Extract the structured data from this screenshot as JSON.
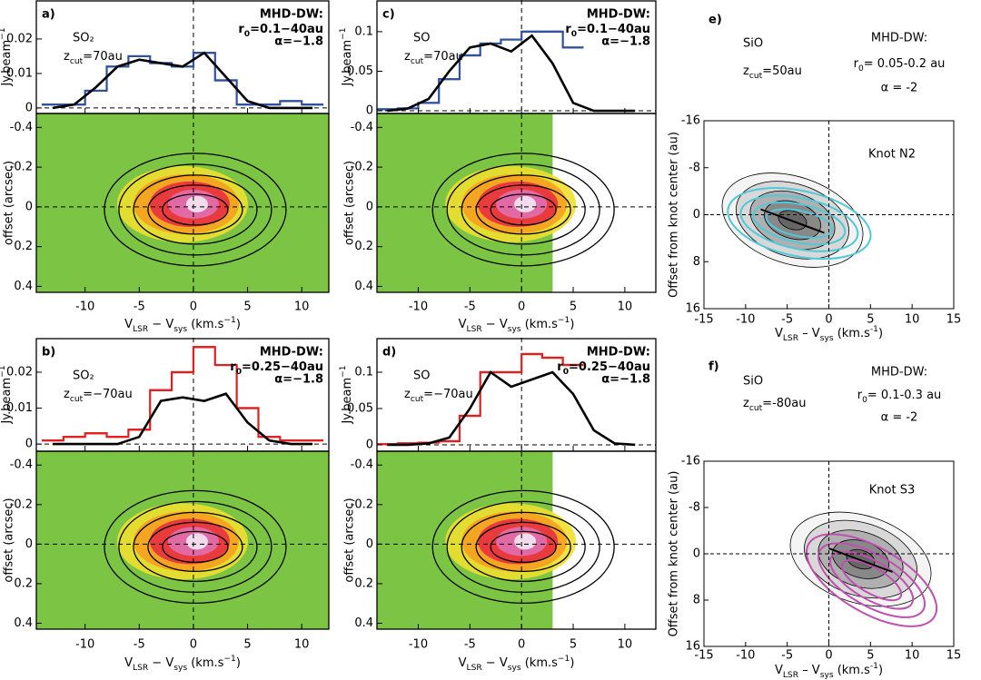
{
  "panels": [
    {
      "label": "a)",
      "species": "SO₂",
      "zcut": [
        "z",
        "cut",
        "=70au"
      ],
      "model": [
        "MHD-DW:",
        [
          "r",
          "0",
          "=0.1−40au"
        ],
        "α=−1.8"
      ],
      "xlim": [
        -14.5,
        12.5
      ],
      "xticks": [
        -10,
        -5,
        0,
        5,
        10
      ],
      "xlabel": [
        "V",
        "LSR",
        " − V",
        "sys",
        " (km.s",
        "−1",
        ")"
      ],
      "spectrum": {
        "type": "line",
        "ylabel": [
          "Jy.beam",
          "−1"
        ],
        "ylim": [
          -0.0016,
          0.0313
        ],
        "yticks": [
          0,
          0.01,
          0.02
        ],
        "series": [
          {
            "color": "#3050a0",
            "style": "steps",
            "x": [
              -13,
              -11,
              -9,
              -7,
              -5,
              -3,
              -1,
              1,
              3,
              5,
              7,
              9,
              11
            ],
            "values": [
              0.001,
              0.001,
              0.005,
              0.012,
              0.015,
              0.013,
              0.012,
              0.016,
              0.008,
              0.001,
              0.001,
              0.002,
              0.001
            ]
          },
          {
            "color": "#000000",
            "style": "line",
            "x": [
              -13,
              -11,
              -9,
              -7,
              -5,
              -3,
              -1,
              1,
              3,
              5,
              7,
              9,
              11
            ],
            "values": [
              0,
              0.001,
              0.006,
              0.012,
              0.014,
              0.013,
              0.012,
              0.016,
              0.009,
              0.002,
              0,
              0,
              0
            ]
          }
        ]
      },
      "pv": {
        "ylabel": "offset (arcsec)",
        "ylim": [
          0.43,
          -0.47
        ],
        "yticks": [
          -0.4,
          -0.2,
          0,
          0.2,
          0.4
        ]
      }
    },
    {
      "label": "b)",
      "species": "SO₂",
      "zcut": [
        "z",
        "cut",
        "=−70au"
      ],
      "model": [
        "MHD-DW:",
        [
          "r",
          "0",
          "=0.25−40au"
        ],
        "α=−1.8"
      ],
      "xlim": [
        -14.5,
        12.5
      ],
      "xticks": [
        -10,
        -5,
        0,
        5,
        10
      ],
      "xlabel": [
        "V",
        "LSR",
        " − V",
        "sys",
        " (km.s",
        "−1",
        ")"
      ],
      "spectrum": {
        "type": "line",
        "ylabel": [
          "Jy.beam",
          "−1"
        ],
        "ylim": [
          -0.002,
          0.0296
        ],
        "yticks": [
          0,
          0.01,
          0.02
        ],
        "series": [
          {
            "color": "#e02020",
            "style": "steps",
            "x": [
              -13,
              -11,
              -9,
              -7,
              -5,
              -3,
              -1,
              1,
              3,
              5,
              7,
              9,
              11
            ],
            "values": [
              0.001,
              0.002,
              0.003,
              0.002,
              0.004,
              0.015,
              0.02,
              0.027,
              0.022,
              0.01,
              0.002,
              0.001,
              0.001
            ]
          },
          {
            "color": "#000000",
            "style": "line",
            "x": [
              -13,
              -11,
              -9,
              -7,
              -5,
              -3,
              -1,
              1,
              3,
              5,
              7,
              9,
              11
            ],
            "values": [
              0,
              0,
              0,
              0,
              0.002,
              0.012,
              0.013,
              0.012,
              0.014,
              0.006,
              0.001,
              0,
              0
            ]
          }
        ]
      },
      "pv": {
        "ylabel": "offset (arcsec)",
        "ylim": [
          0.43,
          -0.47
        ],
        "yticks": [
          -0.4,
          -0.2,
          0,
          0.2,
          0.4
        ]
      }
    },
    {
      "label": "c)",
      "species": "SO",
      "zcut": [
        "z",
        "cut",
        "=70au"
      ],
      "model": [
        "MHD-DW:",
        [
          "r",
          "0",
          "=0.1−40au"
        ],
        "α=−1.8"
      ],
      "xlim": [
        -14,
        13
      ],
      "xticks": [
        -10,
        -5,
        0,
        5,
        10
      ],
      "xlabel": [
        "V",
        "LSR",
        " − V",
        "sys",
        " (km.s",
        "−1",
        ")"
      ],
      "spectrum": {
        "type": "line",
        "ylabel": [
          "Jy.beam",
          "−1"
        ],
        "ylim": [
          -0.0034,
          0.14
        ],
        "yticks": [
          0,
          0.05,
          0.1
        ],
        "series": [
          {
            "color": "#3050a0",
            "style": "steps",
            "x": [
              -13,
              -11,
              -9,
              -7,
              -5,
              -3,
              -1,
              1,
              3,
              5
            ],
            "values": [
              0.002,
              0.003,
              0.01,
              0.04,
              0.07,
              0.085,
              0.09,
              0.1,
              0.1,
              0.08
            ]
          },
          {
            "color": "#000000",
            "style": "line",
            "x": [
              -13,
              -11,
              -9,
              -7,
              -5,
              -3,
              -1,
              1,
              3,
              5,
              7,
              9,
              11
            ],
            "values": [
              0,
              0.003,
              0.015,
              0.05,
              0.08,
              0.085,
              0.075,
              0.095,
              0.06,
              0.01,
              0,
              0,
              0
            ]
          }
        ]
      },
      "pv": {
        "ylabel": "offset (arcsec)",
        "ylim": [
          0.43,
          -0.47
        ],
        "yticks": [
          -0.4,
          -0.2,
          0,
          0.2,
          0.4
        ]
      }
    },
    {
      "label": "d)",
      "species": "SO",
      "zcut": [
        "z",
        "cut",
        "=−70au"
      ],
      "model": [
        "MHD-DW:",
        [
          "r",
          "0",
          "=0.25−40au"
        ],
        "α=−1.8"
      ],
      "xlim": [
        -14,
        13
      ],
      "xticks": [
        -10,
        -5,
        0,
        5,
        10
      ],
      "xlabel": [
        "V",
        "LSR",
        " − V",
        "sys",
        " (km.s",
        "−1",
        ")"
      ],
      "spectrum": {
        "type": "line",
        "ylabel": [
          "Jy.beam",
          "−1"
        ],
        "ylim": [
          -0.0088,
          0.1475
        ],
        "yticks": [
          0,
          0.05,
          0.1
        ],
        "series": [
          {
            "color": "#e02020",
            "style": "steps",
            "x": [
              -13,
              -11,
              -9,
              -7,
              -5,
              -3,
              -1,
              1,
              3,
              5
            ],
            "values": [
              0.001,
              0.002,
              0.003,
              0.005,
              0.04,
              0.1,
              0.1,
              0.125,
              0.12,
              0.11
            ]
          },
          {
            "color": "#000000",
            "style": "line",
            "x": [
              -13,
              -11,
              -9,
              -7,
              -5,
              -3,
              -1,
              1,
              3,
              5,
              7,
              9,
              11
            ],
            "values": [
              0,
              0,
              0.002,
              0.01,
              0.05,
              0.1,
              0.08,
              0.09,
              0.1,
              0.07,
              0.02,
              0.002,
              0
            ]
          }
        ]
      },
      "pv": {
        "ylabel": "offset (arcsec)",
        "ylim": [
          0.43,
          -0.47
        ],
        "yticks": [
          -0.4,
          -0.2,
          0,
          0.2,
          0.4
        ]
      }
    }
  ],
  "knots": [
    {
      "label": "e)",
      "species": "SiO",
      "zcut": [
        "z",
        "cut",
        "=50au"
      ],
      "model": [
        "MHD-DW:",
        [
          "r",
          "0",
          "= 0.05-0.2 au"
        ],
        "α = -2"
      ],
      "knot": "Knot N2",
      "color": "#50c8d8",
      "xlim": [
        -15,
        15
      ],
      "xticks": [
        -15,
        -10,
        -5,
        0,
        5,
        10,
        15
      ],
      "ylim": [
        16,
        -16
      ],
      "yticks": [
        -16,
        -8,
        0,
        8,
        16
      ],
      "ylabel": "Offset from knot center (au)",
      "xlabel": [
        "V",
        "LSR",
        " – V",
        "sys",
        " (km.s",
        "-1",
        ")"
      ]
    },
    {
      "label": "f)",
      "species": "SiO",
      "zcut": [
        "z",
        "cut",
        "=-80au"
      ],
      "model": [
        "MHD-DW:",
        [
          "r",
          "0",
          "= 0.1-0.3 au"
        ],
        "α = -2"
      ],
      "knot": "Knot S3",
      "color": "#c050b0",
      "xlim": [
        -15,
        15
      ],
      "xticks": [
        -15,
        -10,
        -5,
        0,
        5,
        10,
        15
      ],
      "ylim": [
        16,
        -16
      ],
      "yticks": [
        -16,
        -8,
        0,
        8,
        16
      ],
      "ylabel": "Offset from knot center (au)",
      "xlabel": [
        "V",
        "LSR",
        " – V",
        "sys",
        " (km.s",
        "-1",
        ")"
      ]
    }
  ]
}
